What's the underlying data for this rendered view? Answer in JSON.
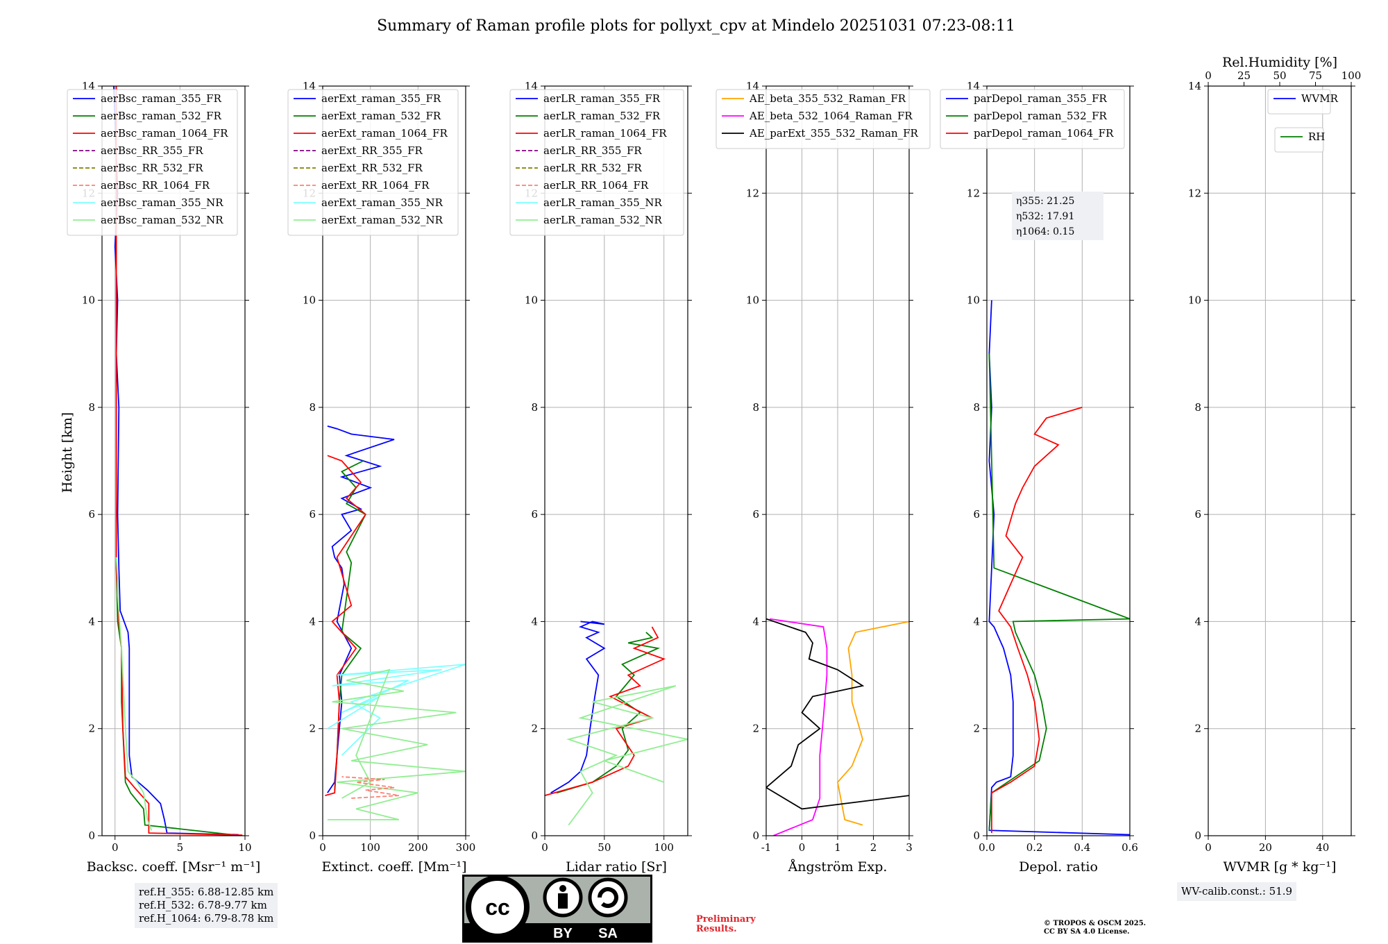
{
  "title": "Summary of Raman profile plots for pollyxt_cpv at Mindelo 20251031 07:23-08:11",
  "colors": {
    "blue": "#0000ff",
    "green": "#008000",
    "red": "#ff0000",
    "purple": "#800080",
    "olive": "#808000",
    "salmon": "#fa8072",
    "cyan": "#7fffff",
    "lightgreen": "#90ee90",
    "orange": "#ffa500",
    "magenta": "#ff00ff",
    "black": "#000000"
  },
  "ylabel": "Height [km]",
  "chart_data": [
    {
      "type": "line",
      "xlabel": "Backsc. coeff. [Msr⁻¹ m⁻¹]",
      "xlim": [
        -1,
        10
      ],
      "ylim": [
        0,
        14
      ],
      "xticks": [
        0,
        5,
        10
      ],
      "yticks": [
        0,
        2,
        4,
        6,
        8,
        10,
        12,
        14
      ],
      "legend": [
        "aerBsc_raman_355_FR",
        "aerBsc_raman_532_FR",
        "aerBsc_raman_1064_FR",
        "aerBsc_RR_355_FR",
        "aerBsc_RR_532_FR",
        "aerBsc_RR_1064_FR",
        "aerBsc_raman_355_NR",
        "aerBsc_raman_532_NR"
      ],
      "series": [
        {
          "name": "aerBsc_raman_355_FR",
          "x": [
            9.5,
            4,
            3.8,
            3.5,
            2.5,
            1.3,
            1.1,
            1.1,
            1.1,
            1,
            0.4,
            0.3,
            0.2,
            0.3,
            0.1,
            0.2,
            0,
            0.2,
            -0.1
          ],
          "y": [
            0.02,
            0.05,
            0.3,
            0.6,
            0.85,
            1.1,
            1.5,
            2.5,
            3.5,
            3.8,
            4.2,
            5,
            6,
            8,
            9,
            10,
            11,
            12,
            14
          ]
        },
        {
          "name": "aerBsc_raman_532_FR",
          "x": [
            9,
            2.3,
            2.2,
            1.2,
            0.8,
            0.7,
            0.5,
            0.5,
            0.2,
            0.1,
            0.1,
            0.1,
            0.1,
            0.1
          ],
          "y": [
            0.02,
            0.2,
            0.5,
            0.8,
            1,
            1.5,
            2.5,
            3.5,
            4,
            5,
            8,
            10,
            12,
            14
          ]
        },
        {
          "name": "aerBsc_raman_1064_FR",
          "x": [
            9.8,
            2.6,
            2.6,
            1.5,
            0.8,
            0.6,
            0.5,
            0.3,
            0.1,
            0.1,
            0.1,
            0.1
          ],
          "y": [
            0.01,
            0.05,
            0.6,
            0.9,
            1.1,
            2,
            3.5,
            4,
            5,
            8,
            11,
            14
          ]
        },
        {
          "name": "aerBsc_raman_532_NR",
          "x": [
            2.8,
            2.5,
            2.2,
            1.7,
            1,
            0.8,
            0.6,
            0.5,
            0.2,
            0.2,
            0.1
          ],
          "y": [
            0.1,
            0.3,
            0.8,
            1,
            1.2,
            2,
            3,
            3.5,
            4.5,
            4.8,
            5.2
          ]
        }
      ]
    },
    {
      "type": "line",
      "xlabel": "Extinct. coeff. [Mm⁻¹]",
      "xlim": [
        0,
        300
      ],
      "ylim": [
        0,
        14
      ],
      "xticks": [
        0,
        100,
        200,
        300
      ],
      "yticks": [
        0,
        2,
        4,
        6,
        8,
        10,
        12,
        14
      ],
      "legend": [
        "aerExt_raman_355_FR",
        "aerExt_raman_532_FR",
        "aerExt_raman_1064_FR",
        "aerExt_RR_355_FR",
        "aerExt_RR_532_FR",
        "aerExt_RR_1064_FR",
        "aerExt_raman_355_NR",
        "aerExt_raman_532_NR"
      ],
      "series": [
        {
          "name": "aerExt_raman_355_FR",
          "x": [
            10,
            25,
            30,
            40,
            35,
            60,
            30,
            45,
            40,
            25,
            20,
            60,
            40,
            80,
            40,
            100,
            40,
            120,
            50,
            150,
            60,
            30,
            10
          ],
          "y": [
            0.8,
            1,
            1.5,
            2.5,
            3,
            3.5,
            4,
            4.7,
            5,
            5.2,
            5.4,
            5.7,
            6,
            6.1,
            6.3,
            6.5,
            6.7,
            6.9,
            7.1,
            7.4,
            7.5,
            7.6,
            7.65
          ]
        },
        {
          "name": "aerExt_raman_532_FR",
          "x": [
            25,
            30,
            35,
            40,
            80,
            40,
            60,
            50,
            90,
            50,
            70,
            40,
            85
          ],
          "y": [
            0.85,
            1.5,
            2.5,
            3,
            3.5,
            3.8,
            5.1,
            5.3,
            6,
            6.2,
            6.5,
            6.8,
            7
          ]
        },
        {
          "name": "aerExt_raman_1064_FR",
          "x": [
            5,
            25,
            30,
            35,
            30,
            70,
            40,
            20,
            60,
            30,
            90,
            50,
            80,
            40,
            10
          ],
          "y": [
            0.75,
            0.8,
            1.5,
            2.5,
            3,
            3.5,
            3.8,
            4,
            4.3,
            5.2,
            6,
            6.3,
            6.6,
            7,
            7.1
          ]
        },
        {
          "name": "aerExt_raman_355_NR",
          "x": [
            40,
            120,
            60,
            300,
            30,
            250,
            20,
            180,
            40,
            120,
            10
          ],
          "y": [
            1.5,
            2.2,
            2.5,
            3.2,
            3,
            3.1,
            2.8,
            2.9,
            2.3,
            2.6,
            2.0
          ]
        },
        {
          "name": "aerExt_raman_532_NR",
          "x": [
            10,
            160,
            70,
            200,
            30,
            300,
            60,
            220,
            40,
            280,
            20,
            170,
            50,
            140,
            70,
            100,
            40
          ],
          "y": [
            0.3,
            0.3,
            0.5,
            0.8,
            1,
            1.2,
            1.4,
            1.7,
            2,
            2.3,
            2.5,
            2.7,
            2.9,
            3.1,
            1.5,
            1.0,
            0.7
          ]
        },
        {
          "name": "aerExt_RR_1064_FR",
          "x": [
            60,
            160,
            90,
            150,
            70,
            130,
            40
          ],
          "y": [
            0.7,
            0.75,
            0.85,
            0.9,
            1,
            1.05,
            1.1
          ]
        }
      ]
    },
    {
      "type": "line",
      "xlabel": "Lidar ratio [Sr]",
      "xlim": [
        0,
        120
      ],
      "ylim": [
        0,
        14
      ],
      "xticks": [
        0,
        50,
        100
      ],
      "yticks": [
        0,
        2,
        4,
        6,
        8,
        10,
        12,
        14
      ],
      "legend": [
        "aerLR_raman_355_FR",
        "aerLR_raman_532_FR",
        "aerLR_raman_1064_FR",
        "aerLR_RR_355_FR",
        "aerLR_RR_532_FR",
        "aerLR_RR_1064_FR",
        "aerLR_raman_355_NR",
        "aerLR_raman_532_NR"
      ],
      "series": [
        {
          "name": "aerLR_raman_355_FR",
          "x": [
            5,
            20,
            30,
            35,
            38,
            40,
            42,
            45,
            35,
            50,
            35,
            45,
            30,
            40,
            50,
            30
          ],
          "y": [
            0.8,
            1,
            1.2,
            1.5,
            2,
            2.3,
            2.6,
            3,
            3.3,
            3.5,
            3.7,
            3.8,
            3.9,
            4,
            3.95,
            4
          ]
        },
        {
          "name": "aerLR_raman_532_FR",
          "x": [
            10,
            40,
            60,
            70,
            65,
            80,
            60,
            75,
            65,
            95,
            70,
            90,
            85
          ],
          "y": [
            0.8,
            1,
            1.3,
            1.6,
            2,
            2.3,
            2.6,
            3,
            3.2,
            3.5,
            3.6,
            3.7,
            3.8
          ]
        },
        {
          "name": "aerLR_raman_1064_FR",
          "x": [
            0,
            40,
            70,
            75,
            60,
            90,
            55,
            80,
            70,
            100,
            75,
            95,
            90
          ],
          "y": [
            0.75,
            1,
            1.3,
            1.5,
            2,
            2.2,
            2.6,
            2.8,
            3,
            3.3,
            3.5,
            3.7,
            3.9
          ]
        },
        {
          "name": "aerLR_raman_532_NR",
          "x": [
            20,
            40,
            30,
            60,
            20,
            90,
            40,
            110,
            30,
            120,
            50,
            100
          ],
          "y": [
            0.2,
            0.8,
            1.2,
            1.5,
            1.8,
            2.2,
            2.5,
            2.8,
            2.2,
            1.8,
            1.4,
            1.0
          ]
        }
      ]
    },
    {
      "type": "line",
      "xlabel": "Ångström Exp.",
      "xlim": [
        -1,
        3
      ],
      "ylim": [
        0,
        14
      ],
      "xticks": [
        -1,
        0,
        1,
        2,
        3
      ],
      "yticks": [
        0,
        2,
        4,
        6,
        8,
        10,
        12,
        14
      ],
      "legend": [
        "AE_beta_355_532_Raman_FR",
        "AE_beta_532_1064_Raman_FR",
        "AE_parExt_355_532_Raman_FR"
      ],
      "series": [
        {
          "name": "AE_beta_355_532_Raman_FR",
          "x": [
            1.7,
            1.2,
            1,
            1.4,
            1.7,
            1.4,
            1.4,
            1.3,
            1.5,
            3
          ],
          "y": [
            0.2,
            0.3,
            1,
            1.3,
            1.8,
            2.5,
            3,
            3.5,
            3.8,
            4
          ]
        },
        {
          "name": "AE_beta_532_1064_Raman_FR",
          "x": [
            -0.8,
            0.3,
            0.5,
            0.5,
            0.6,
            0.7,
            0.7,
            0.6,
            -0.9
          ],
          "y": [
            0,
            0.3,
            0.7,
            1.5,
            2.2,
            3,
            3.5,
            3.9,
            4.05
          ]
        },
        {
          "name": "AE_parExt_355_532_Raman_FR",
          "x": [
            3,
            0,
            -1,
            -0.3,
            -0.1,
            0.3,
            0.5,
            0,
            0.3,
            1,
            1.7,
            1,
            0.2,
            0.3,
            0.1,
            -1
          ],
          "y": [
            0.75,
            0.5,
            0.9,
            1.3,
            1.7,
            1.9,
            2,
            2.3,
            2.6,
            2.7,
            2.8,
            3.1,
            3.3,
            3.6,
            3.8,
            4.05
          ]
        }
      ]
    },
    {
      "type": "line",
      "xlabel": "Depol. ratio",
      "xlim": [
        0,
        0.6
      ],
      "ylim": [
        0,
        14
      ],
      "xticks": [
        0.0,
        0.2,
        0.4,
        0.6
      ],
      "yticks": [
        0,
        2,
        4,
        6,
        8,
        10,
        12,
        14
      ],
      "legend": [
        "parDepol_raman_355_FR",
        "parDepol_raman_532_FR",
        "parDepol_raman_1064_FR"
      ],
      "annotations": [
        "η355: 21.25",
        "η532: 17.91",
        "η1064: 0.15"
      ],
      "series": [
        {
          "name": "parDepol_raman_355_FR",
          "x": [
            0.6,
            0.01,
            0.02,
            0.04,
            0.1,
            0.11,
            0.11,
            0.1,
            0.07,
            0.03,
            0.01,
            0.02,
            0.03,
            0.01,
            0.02,
            0.01,
            0.02
          ],
          "y": [
            0.02,
            0.1,
            0.9,
            1,
            1.1,
            1.5,
            2.5,
            3,
            3.5,
            3.9,
            4,
            5,
            6,
            7,
            8,
            9,
            10
          ]
        },
        {
          "name": "parDepol_raman_532_FR",
          "x": [
            0.01,
            0.02,
            0.12,
            0.22,
            0.25,
            0.23,
            0.2,
            0.15,
            0.12,
            0.11,
            0.6,
            0.03,
            0.02,
            0.01
          ],
          "y": [
            0.1,
            0.8,
            1.1,
            1.4,
            2,
            2.5,
            3,
            3.5,
            3.8,
            4,
            4.05,
            5,
            7,
            9
          ]
        },
        {
          "name": "parDepol_raman_1064_FR",
          "x": [
            0.02,
            0.02,
            0.1,
            0.2,
            0.22,
            0.2,
            0.17,
            0.13,
            0.1,
            0.05,
            0.1,
            0.15,
            0.08,
            0.1,
            0.12,
            0.15,
            0.2,
            0.3,
            0.2,
            0.25,
            0.4
          ],
          "y": [
            0.05,
            0.8,
            1,
            1.3,
            1.8,
            2.5,
            3,
            3.5,
            3.9,
            4.2,
            4.7,
            5.2,
            5.6,
            5.9,
            6.2,
            6.5,
            6.9,
            7.3,
            7.5,
            7.8,
            8
          ]
        }
      ]
    },
    {
      "type": "line",
      "xlabel": "WVMR [g * kg⁻¹]",
      "toplabel": "Rel.Humidity [%]",
      "xlim": [
        0,
        50
      ],
      "ylim": [
        0,
        14
      ],
      "xticks": [
        0,
        20,
        40
      ],
      "yticks": [
        0,
        2,
        4,
        6,
        8,
        10,
        12,
        14
      ],
      "top_xticks": [
        0,
        25,
        50,
        75,
        100
      ],
      "legend": [
        "WVMR"
      ],
      "legend2": [
        "RH"
      ],
      "series": []
    }
  ],
  "notes": {
    "refh": [
      "ref.H_355: 6.88-12.85 km",
      "ref.H_532: 6.78-9.77 km",
      "ref.H_1064: 6.79-8.78 km"
    ],
    "wv_calib": "WV-calib.const.: 51.9",
    "preliminary": [
      "Preliminary",
      "Results."
    ],
    "copyright": [
      "© TROPOS & OSCM 2025.",
      "CC BY SA 4.0 License."
    ],
    "license_badge": {
      "cc": "cc",
      "by": "BY",
      "sa": "SA"
    }
  }
}
